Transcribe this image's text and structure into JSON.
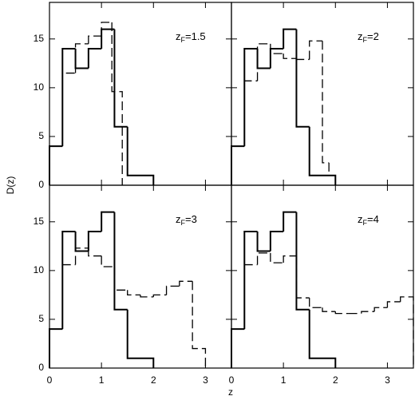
{
  "xlabel": "z",
  "ylabel": "D(z)",
  "chart_data": [
    {
      "type": "histogram",
      "annotation": [
        "z",
        "F",
        "=1.5"
      ],
      "xlim": [
        0,
        3.5
      ],
      "ylim": [
        0,
        18.75
      ],
      "xticks": [
        0,
        1,
        2,
        3
      ],
      "yticks": [
        0,
        5,
        10,
        15
      ],
      "show_xtick_labels": false,
      "show_ytick_labels": true,
      "series": [
        {
          "style": "solid",
          "color": "#000000",
          "bins": [
            0,
            0.25,
            0.5,
            0.75,
            1.0,
            1.25,
            1.5,
            1.75,
            2.0
          ],
          "values": [
            4,
            14,
            12,
            14,
            16,
            6,
            1,
            1
          ]
        },
        {
          "style": "dashed",
          "color": "#000000",
          "bins": [
            0,
            0.25,
            0.5,
            0.75,
            1.0,
            1.2,
            1.4
          ],
          "values": [
            4,
            11.5,
            14.5,
            15.3,
            16.7,
            9.6
          ]
        }
      ]
    },
    {
      "type": "histogram",
      "annotation": [
        "z",
        "F",
        "=2"
      ],
      "xlim": [
        0,
        3.5
      ],
      "ylim": [
        0,
        18.75
      ],
      "xticks": [
        0,
        1,
        2,
        3
      ],
      "yticks": [
        0,
        5,
        10,
        15
      ],
      "show_xtick_labels": false,
      "show_ytick_labels": false,
      "series": [
        {
          "style": "solid",
          "color": "#000000",
          "bins": [
            0,
            0.25,
            0.5,
            0.75,
            1.0,
            1.25,
            1.5,
            1.75,
            2.0
          ],
          "values": [
            4,
            14,
            12,
            14,
            16,
            6,
            1,
            1
          ]
        },
        {
          "style": "dashed",
          "color": "#000000",
          "bins": [
            0,
            0.25,
            0.5,
            0.75,
            1.0,
            1.25,
            1.5,
            1.75,
            1.875,
            2.0
          ],
          "values": [
            4,
            10.7,
            14.5,
            13.5,
            13,
            12.9,
            14.8,
            2.3,
            1
          ]
        }
      ]
    },
    {
      "type": "histogram",
      "annotation": [
        "z",
        "F",
        "=3"
      ],
      "xlim": [
        0,
        3.5
      ],
      "ylim": [
        0,
        18.75
      ],
      "xticks": [
        0,
        1,
        2,
        3
      ],
      "yticks": [
        0,
        5,
        10,
        15
      ],
      "show_xtick_labels": true,
      "show_ytick_labels": true,
      "series": [
        {
          "style": "solid",
          "color": "#000000",
          "bins": [
            0,
            0.25,
            0.5,
            0.75,
            1.0,
            1.25,
            1.5,
            1.75,
            2.0
          ],
          "values": [
            4,
            14,
            12,
            14,
            16,
            6,
            1,
            1
          ]
        },
        {
          "style": "dashed",
          "color": "#000000",
          "bins": [
            0,
            0.25,
            0.5,
            0.75,
            1.0,
            1.25,
            1.5,
            1.75,
            2.0,
            2.25,
            2.5,
            2.75,
            3.0
          ],
          "values": [
            4,
            10.6,
            12.3,
            11.5,
            10.4,
            8,
            7.5,
            7.3,
            7.5,
            8.4,
            8.9,
            2
          ]
        }
      ]
    },
    {
      "type": "histogram",
      "annotation": [
        "z",
        "F",
        "=4"
      ],
      "xlim": [
        0,
        3.5
      ],
      "ylim": [
        0,
        18.75
      ],
      "xticks": [
        0,
        1,
        2,
        3
      ],
      "yticks": [
        0,
        5,
        10,
        15
      ],
      "show_xtick_labels": true,
      "show_ytick_labels": false,
      "series": [
        {
          "style": "solid",
          "color": "#000000",
          "bins": [
            0,
            0.25,
            0.5,
            0.75,
            1.0,
            1.25,
            1.5,
            1.75,
            2.0
          ],
          "values": [
            4,
            14,
            12,
            14,
            16,
            6,
            1,
            1
          ]
        },
        {
          "style": "dashed",
          "color": "#000000",
          "bins": [
            0,
            0.25,
            0.5,
            0.75,
            1.0,
            1.25,
            1.5,
            1.75,
            2.0,
            2.25,
            2.5,
            2.75,
            3.0,
            3.25,
            3.5
          ],
          "values": [
            4,
            10.6,
            11.8,
            10.8,
            11.5,
            7.2,
            6.2,
            5.8,
            5.6,
            5.6,
            5.8,
            6.2,
            6.8,
            7.3
          ]
        }
      ]
    }
  ]
}
